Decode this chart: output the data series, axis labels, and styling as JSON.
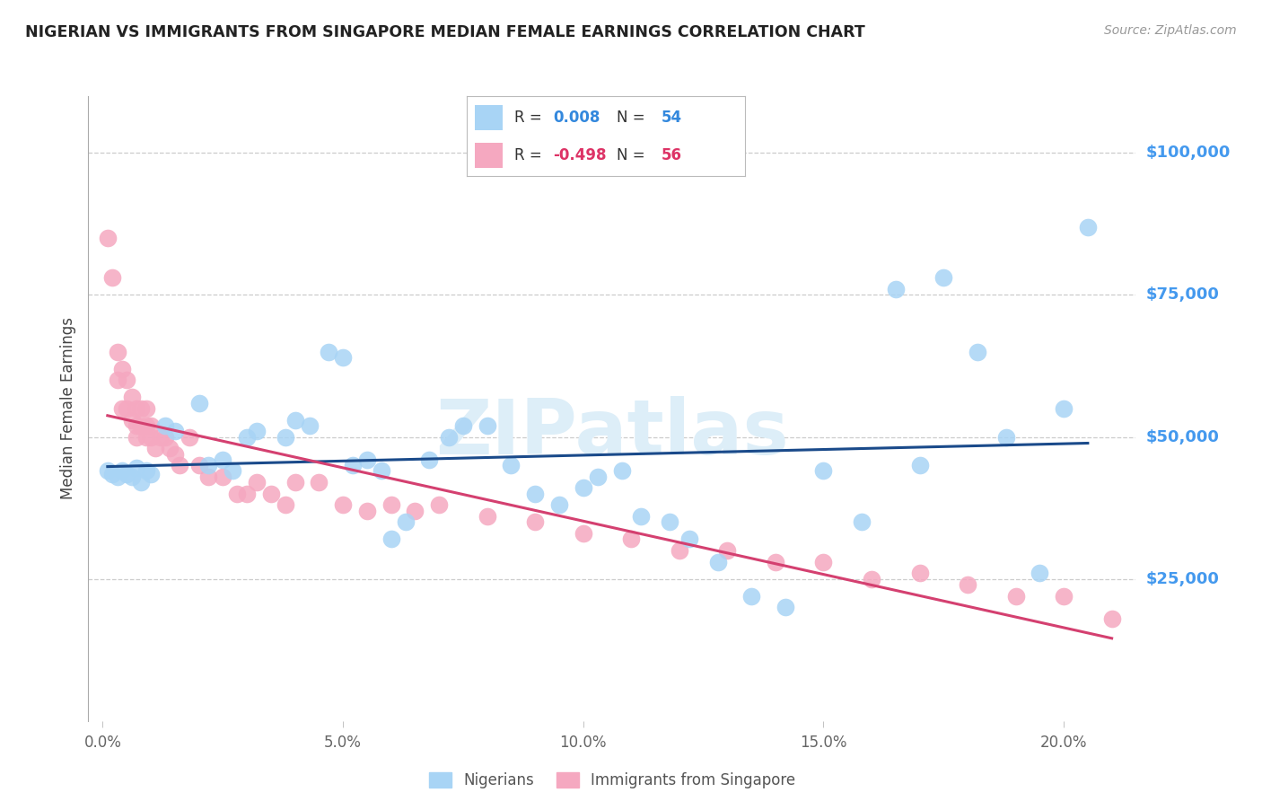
{
  "title": "NIGERIAN VS IMMIGRANTS FROM SINGAPORE MEDIAN FEMALE EARNINGS CORRELATION CHART",
  "source": "Source: ZipAtlas.com",
  "ylabel": "Median Female Earnings",
  "xlabel_ticks": [
    "0.0%",
    "5.0%",
    "10.0%",
    "15.0%",
    "20.0%"
  ],
  "xlabel_vals": [
    0.0,
    0.05,
    0.1,
    0.15,
    0.2
  ],
  "ytick_labels": [
    "$25,000",
    "$50,000",
    "$75,000",
    "$100,000"
  ],
  "ytick_vals": [
    25000,
    50000,
    75000,
    100000
  ],
  "ylim": [
    0,
    110000
  ],
  "xlim": [
    -0.003,
    0.215
  ],
  "nigerians_color": "#a8d4f5",
  "singapore_color": "#f5a8c0",
  "trendline_nigerian_color": "#1a4a8a",
  "trendline_singapore_color": "#d44070",
  "watermark": "ZIPatlas",
  "watermark_color": "#ddeef8",
  "background_color": "#ffffff",
  "nigerians_x": [
    0.001,
    0.002,
    0.003,
    0.004,
    0.005,
    0.006,
    0.007,
    0.008,
    0.009,
    0.01,
    0.013,
    0.015,
    0.02,
    0.022,
    0.025,
    0.027,
    0.03,
    0.032,
    0.038,
    0.04,
    0.043,
    0.047,
    0.05,
    0.052,
    0.055,
    0.058,
    0.06,
    0.063,
    0.068,
    0.072,
    0.075,
    0.08,
    0.085,
    0.09,
    0.095,
    0.1,
    0.103,
    0.108,
    0.112,
    0.118,
    0.122,
    0.128,
    0.135,
    0.142,
    0.15,
    0.158,
    0.165,
    0.17,
    0.175,
    0.182,
    0.188,
    0.195,
    0.2,
    0.205
  ],
  "nigerians_y": [
    44000,
    43500,
    43000,
    44000,
    43500,
    43000,
    44500,
    42000,
    44000,
    43500,
    52000,
    51000,
    56000,
    45000,
    46000,
    44000,
    50000,
    51000,
    50000,
    53000,
    52000,
    65000,
    64000,
    45000,
    46000,
    44000,
    32000,
    35000,
    46000,
    50000,
    52000,
    52000,
    45000,
    40000,
    38000,
    41000,
    43000,
    44000,
    36000,
    35000,
    32000,
    28000,
    22000,
    20000,
    44000,
    35000,
    76000,
    45000,
    78000,
    65000,
    50000,
    26000,
    55000,
    87000
  ],
  "singapore_x": [
    0.001,
    0.002,
    0.003,
    0.003,
    0.004,
    0.004,
    0.005,
    0.005,
    0.006,
    0.006,
    0.007,
    0.007,
    0.007,
    0.008,
    0.008,
    0.009,
    0.009,
    0.009,
    0.01,
    0.01,
    0.011,
    0.012,
    0.013,
    0.014,
    0.015,
    0.016,
    0.018,
    0.02,
    0.022,
    0.025,
    0.028,
    0.03,
    0.032,
    0.035,
    0.038,
    0.04,
    0.045,
    0.05,
    0.055,
    0.06,
    0.065,
    0.07,
    0.08,
    0.09,
    0.1,
    0.11,
    0.12,
    0.13,
    0.14,
    0.15,
    0.16,
    0.17,
    0.18,
    0.19,
    0.2,
    0.21
  ],
  "singapore_y": [
    85000,
    78000,
    65000,
    60000,
    62000,
    55000,
    60000,
    55000,
    57000,
    53000,
    55000,
    52000,
    50000,
    55000,
    52000,
    55000,
    52000,
    50000,
    52000,
    50000,
    48000,
    50000,
    50000,
    48000,
    47000,
    45000,
    50000,
    45000,
    43000,
    43000,
    40000,
    40000,
    42000,
    40000,
    38000,
    42000,
    42000,
    38000,
    37000,
    38000,
    37000,
    38000,
    36000,
    35000,
    33000,
    32000,
    30000,
    30000,
    28000,
    28000,
    25000,
    26000,
    24000,
    22000,
    22000,
    18000
  ]
}
